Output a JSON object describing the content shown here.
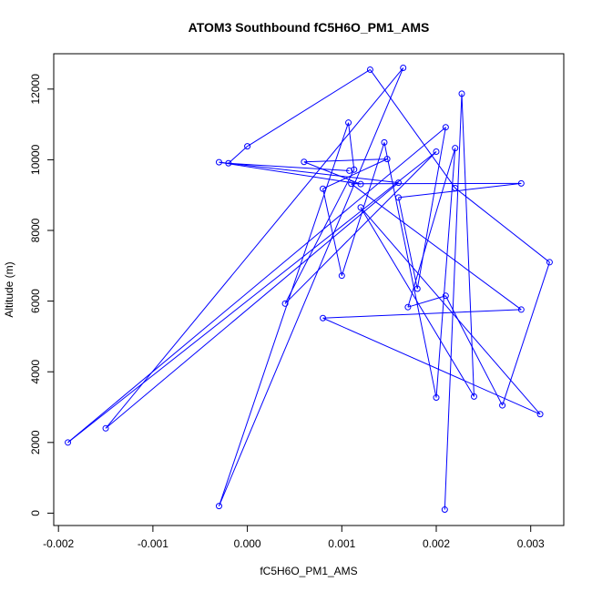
{
  "chart_data": {
    "type": "line",
    "title": "ATOM3 Southbound fC5H6O_PM1_AMS",
    "xlabel": "fC5H6O_PM1_AMS",
    "ylabel": "Altitude (m)",
    "xlim": [
      -0.00205,
      0.00335
    ],
    "ylim": [
      -350,
      13000
    ],
    "xticks": [
      "-0.002",
      "-0.001",
      "0.000",
      "0.001",
      "0.002",
      "0.003"
    ],
    "xtick_values": [
      -0.002,
      -0.001,
      0.0,
      0.001,
      0.002,
      0.003
    ],
    "yticks": [
      "0",
      "2000",
      "4000",
      "6000",
      "8000",
      "10000",
      "12000"
    ],
    "ytick_values": [
      0,
      2000,
      4000,
      6000,
      8000,
      10000,
      12000
    ],
    "grid": false,
    "series_color": "#0000ff",
    "marker": "open-circle",
    "points": [
      {
        "x": 0.00209,
        "y": 100
      },
      {
        "x": 0.00227,
        "y": 11870
      },
      {
        "x": 0.0024,
        "y": 3300
      },
      {
        "x": 0.0012,
        "y": 8650
      },
      {
        "x": 0.0031,
        "y": 2800
      },
      {
        "x": 0.0008,
        "y": 5520
      },
      {
        "x": 0.0029,
        "y": 5760
      },
      {
        "x": 0.0011,
        "y": 9320
      },
      {
        "x": 0.0029,
        "y": 9330
      },
      {
        "x": 0.0016,
        "y": 8930
      },
      {
        "x": 0.0018,
        "y": 6350
      },
      {
        "x": 0.0021,
        "y": 10920
      },
      {
        "x": -0.0019,
        "y": 2000
      },
      {
        "x": 0.002,
        "y": 10230
      },
      {
        "x": 0.0004,
        "y": 5930
      },
      {
        "x": 0.00113,
        "y": 9720
      },
      {
        "x": 0.00107,
        "y": 11050
      },
      {
        "x": -0.0003,
        "y": 200
      },
      {
        "x": 0.00165,
        "y": 12600
      },
      {
        "x": -0.0015,
        "y": 2400
      },
      {
        "x": 0.0016,
        "y": 9350
      },
      {
        "x": -0.0003,
        "y": 9930
      },
      {
        "x": 0.0012,
        "y": 9310
      },
      {
        "x": 0.0006,
        "y": 9940
      },
      {
        "x": 0.00148,
        "y": 10020
      },
      {
        "x": 0.0008,
        "y": 9180
      },
      {
        "x": 0.001,
        "y": 6720
      },
      {
        "x": 0.00145,
        "y": 10490
      },
      {
        "x": 0.002,
        "y": 3270
      },
      {
        "x": 0.0022,
        "y": 10330
      },
      {
        "x": 0.0017,
        "y": 5830
      },
      {
        "x": 0.0021,
        "y": 6150
      },
      {
        "x": 0.0027,
        "y": 3050
      },
      {
        "x": 0.0032,
        "y": 7100
      },
      {
        "x": 0.0022,
        "y": 9200
      },
      {
        "x": 0.0013,
        "y": 12550
      },
      {
        "x": 0.0,
        "y": 10380
      },
      {
        "x": -0.0002,
        "y": 9900
      },
      {
        "x": 0.00108,
        "y": 9690
      }
    ]
  }
}
